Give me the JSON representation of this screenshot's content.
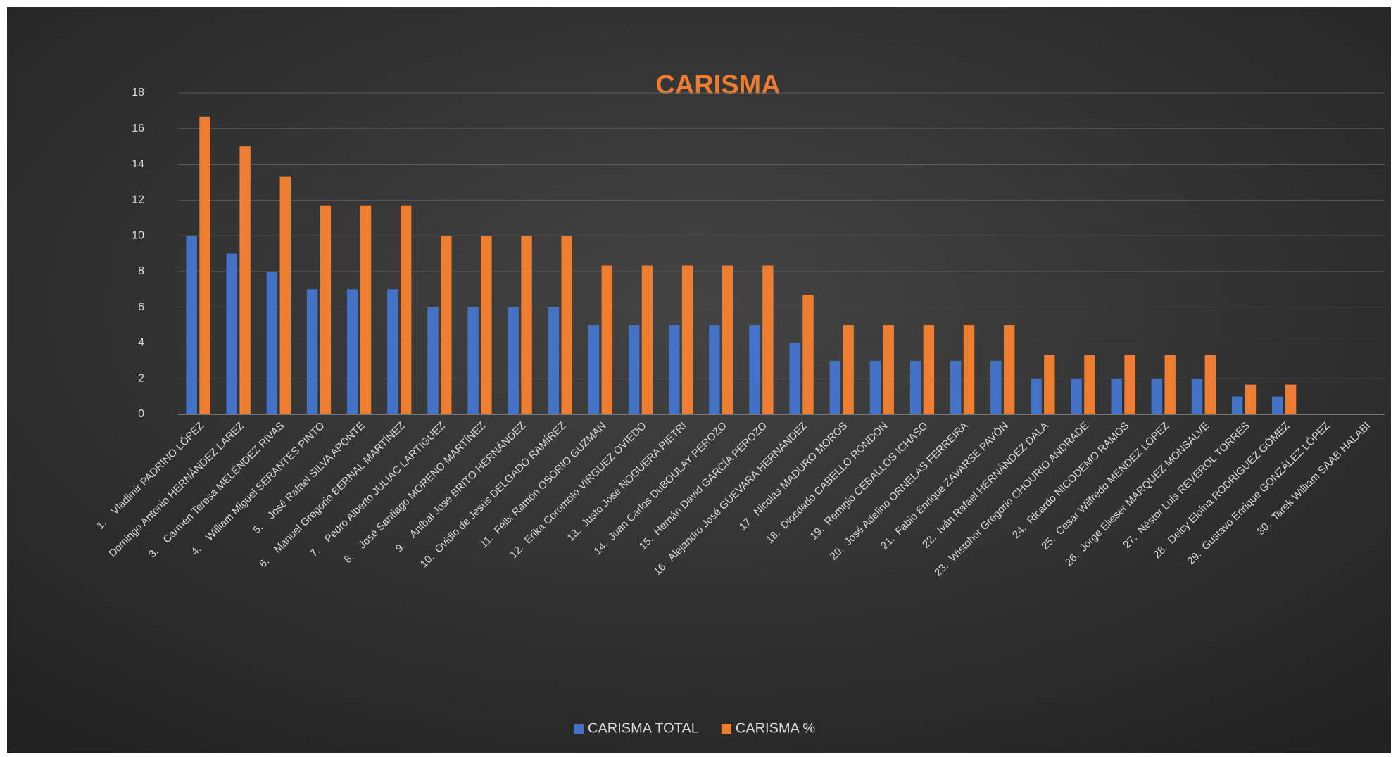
{
  "chart_data": {
    "type": "bar",
    "title": "CARISMA",
    "categories": [
      "1.    Vladimir PADRINO LÓPEZ",
      "Domingo Antonio HERNÁNDEZ LAREZ",
      "3.    Carmen Teresa MELÉNDEZ RIVAS",
      "4.    William Miguel SERANTES PINTO",
      "5.    José Rafael SILVA APONTE",
      "6.    Manuel Gregorio BERNAL MARTÍNEZ",
      "7.    Pedro Alberto JULIAC LARTIGUEZ",
      "8.    José Santiago MORENO MARTÍNEZ",
      "9.    Aníbal José BRITO HERNÁNDEZ",
      "10.  Ovidio de Jesús DELGADO RAMÍREZ",
      "11.  Félix Ramón OSORIO GUZMAN",
      "12.  Erika Coromoto VIRGUEZ OVIEDO",
      "13.  Justo José NOGUERA PIETRI",
      "14.  Juan Carlos DuBOULAY PEROZO",
      "15.  Hernán David GARCÍA PEROZO",
      "16.  Alejandro José GUEVARA HERNÁNDEZ",
      "17.  Nicolás MADURO MOROS",
      "18.  Diosdado CABELLO RONDÓN",
      "19.  Remigio CEBALLOS ICHASO",
      "20.  José Adelino ORNELAS FERREIRA",
      "21.  Fabio Enrique ZAVARSE PAVÓN",
      "22.  Iván Rafael HERNÁNDEZ DALA",
      "23.  Wistohor Gregorio CHOURIO ANDRADE",
      "24.  Ricardo NICODEMO RAMOS",
      "25.  Cesar Wilfredo MENDEZ LOPEZ",
      "26.  Jorge Elieser MARQUEZ MONSALVE",
      "27.  Néstor Luis REVEROL TORRES",
      "28.  Delcy Eloína RODRÍGUEZ GÓMEZ",
      "29.  Gustavo Enrique GONZÁLEZ LÓPEZ",
      "30.  Tarek William SAAB HALABI"
    ],
    "series": [
      {
        "name": "CARISMA TOTAL",
        "color": "#4472c4",
        "values": [
          10,
          9,
          8,
          7,
          7,
          7,
          6,
          6,
          6,
          6,
          5,
          5,
          5,
          5,
          5,
          4,
          3,
          3,
          3,
          3,
          3,
          2,
          2,
          2,
          2,
          2,
          1,
          1,
          0,
          0
        ]
      },
      {
        "name": "CARISMA %",
        "color": "#ed7d31",
        "values": [
          16.67,
          15,
          13.33,
          11.67,
          11.67,
          11.67,
          10,
          10,
          10,
          10,
          8.33,
          8.33,
          8.33,
          8.33,
          8.33,
          6.67,
          5,
          5,
          5,
          5,
          5,
          3.33,
          3.33,
          3.33,
          3.33,
          3.33,
          1.67,
          1.67,
          0,
          0
        ]
      }
    ],
    "ylim": [
      0,
      18
    ],
    "yticks": [
      0,
      2,
      4,
      6,
      8,
      10,
      12,
      14,
      16,
      18
    ],
    "grid": true,
    "legend": "bottom"
  }
}
